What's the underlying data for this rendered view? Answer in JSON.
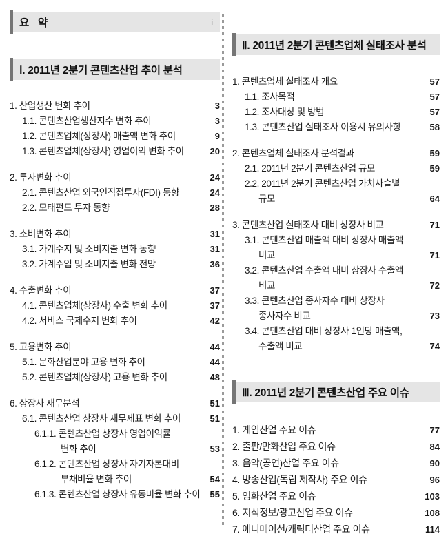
{
  "summary": {
    "label": "요 약",
    "page": "i"
  },
  "sections": {
    "analysis": {
      "title": "Ⅰ. 2011년 2분기 콘텐츠산업 추이 분석",
      "entries": [
        {
          "text": "1. 산업생산 변화 추이",
          "page": "3",
          "level": "0",
          "gap": 0
        },
        {
          "text": "1.1. 콘텐츠산업생산지수 변화 추이",
          "page": "3",
          "level": "1",
          "gap": 0
        },
        {
          "text": "1.2. 콘텐츠업체(상장사) 매출액 변화 추이",
          "page": "9",
          "level": "1",
          "gap": 0
        },
        {
          "text": "1.3. 콘텐츠업체(상장사) 영업이익 변화 추이",
          "page": "20",
          "level": "1",
          "gap": 0
        },
        {
          "text": "2. 투자변화 추이",
          "page": "24",
          "level": "0",
          "gap": 1
        },
        {
          "text": "2.1. 콘텐츠산업 외국인직접투자(FDI) 동향",
          "page": "24",
          "level": "1",
          "gap": 0
        },
        {
          "text": "2.2. 모태펀드 투자 동향",
          "page": "28",
          "level": "1",
          "gap": 0
        },
        {
          "text": "3. 소비변화 추이",
          "page": "31",
          "level": "0",
          "gap": 1
        },
        {
          "text": "3.1. 가계수지 및 소비지출 변화 동향",
          "page": "31",
          "level": "1",
          "gap": 0
        },
        {
          "text": "3.2. 가계수입 및 소비지출 변화 전망",
          "page": "36",
          "level": "1",
          "gap": 0
        },
        {
          "text": "4. 수출변화 추이",
          "page": "37",
          "level": "0",
          "gap": 1
        },
        {
          "text": "4.1. 콘텐츠업체(상장사) 수출 변화 추이",
          "page": "37",
          "level": "1",
          "gap": 0
        },
        {
          "text": "4.2. 서비스 국제수지 변화 추이",
          "page": "42",
          "level": "1",
          "gap": 0
        },
        {
          "text": "5. 고용변화 추이",
          "page": "44",
          "level": "0",
          "gap": 1
        },
        {
          "text": "5.1. 문화산업분야 고용 변화 추이",
          "page": "44",
          "level": "1",
          "gap": 0
        },
        {
          "text": "5.2. 콘텐츠업체(상장사) 고용 변화 추이",
          "page": "48",
          "level": "1",
          "gap": 0
        },
        {
          "text": "6. 상장사 재무분석",
          "page": "51",
          "level": "0",
          "gap": 1
        },
        {
          "text": "6.1. 콘텐츠산업 상장사 재무제표 변화 추이",
          "page": "51",
          "level": "1",
          "gap": 0
        },
        {
          "text": "6.1.1. 콘텐츠산업 상장사 영업이익률",
          "page": "",
          "level": "2",
          "gap": 0
        },
        {
          "text": "변화 추이",
          "page": "53",
          "level": "2c",
          "gap": 0
        },
        {
          "text": "6.1.2. 콘텐츠산업 상장사 자기자본대비",
          "page": "",
          "level": "2",
          "gap": 0
        },
        {
          "text": "부채비율 변화 추이",
          "page": "54",
          "level": "2c",
          "gap": 0
        },
        {
          "text": "6.1.3. 콘텐츠산업 상장사 유동비율 변화 추이",
          "page": "55",
          "level": "2",
          "gap": 0
        }
      ]
    },
    "survey": {
      "title": "Ⅱ. 2011년 2분기 콘텐츠업체 실태조사 분석",
      "entries": [
        {
          "text": "1. 콘텐츠업체 실태조사 개요",
          "page": "57",
          "level": "0",
          "gap": 0
        },
        {
          "text": "1.1. 조사목적",
          "page": "57",
          "level": "1",
          "gap": 0
        },
        {
          "text": "1.2. 조사대상 및 방법",
          "page": "57",
          "level": "1",
          "gap": 0
        },
        {
          "text": "1.3. 콘텐츠산업 실태조사 이용시 유의사항",
          "page": "58",
          "level": "1",
          "gap": 0
        },
        {
          "text": "2. 콘텐츠업체 실태조사 분석결과",
          "page": "59",
          "level": "0",
          "gap": 1
        },
        {
          "text": "2.1. 2011년 2분기 콘텐츠산업 규모",
          "page": "59",
          "level": "1",
          "gap": 0
        },
        {
          "text": "2.2. 2011년 2분기 콘텐츠산업 가치사슬별",
          "page": "",
          "level": "1",
          "gap": 0
        },
        {
          "text": "규모",
          "page": "64",
          "level": "1c",
          "gap": 0
        },
        {
          "text": "3. 콘텐츠산업 실태조사 대비 상장사 비교",
          "page": "71",
          "level": "0",
          "gap": 1
        },
        {
          "text": "3.1. 콘텐츠산업 매출액 대비 상장사 매출액",
          "page": "",
          "level": "1",
          "gap": 0
        },
        {
          "text": "비교",
          "page": "71",
          "level": "1c",
          "gap": 0
        },
        {
          "text": "3.2. 콘텐츠산업 수출액 대비 상장사 수출액",
          "page": "",
          "level": "1",
          "gap": 0
        },
        {
          "text": "비교",
          "page": "72",
          "level": "1c",
          "gap": 0
        },
        {
          "text": "3.3. 콘텐츠산업 종사자수 대비 상장사",
          "page": "",
          "level": "1",
          "gap": 0
        },
        {
          "text": "종사자수 비교",
          "page": "73",
          "level": "1c",
          "gap": 0
        },
        {
          "text": "3.4. 콘텐츠산업 대비 상장사 1인당 매출액,",
          "page": "",
          "level": "1",
          "gap": 0
        },
        {
          "text": "수출액 비교",
          "page": "74",
          "level": "1c",
          "gap": 0
        }
      ]
    },
    "issues": {
      "title": "Ⅲ. 2011년 2분기 콘텐츠산업 주요 이슈",
      "entries": [
        {
          "text": "1. 게임산업 주요 이슈",
          "page": "77",
          "level": "0",
          "gap": 0
        },
        {
          "text": "2. 출판/만화산업 주요 이슈",
          "page": "84",
          "level": "0",
          "gap": 0
        },
        {
          "text": "3. 음악(공연)산업 주요 이슈",
          "page": "90",
          "level": "0",
          "gap": 0
        },
        {
          "text": "4. 방송산업(독립 제작사) 주요 이슈",
          "page": "96",
          "level": "0",
          "gap": 0
        },
        {
          "text": "5. 영화산업 주요 이슈",
          "page": "103",
          "level": "0",
          "gap": 0
        },
        {
          "text": "6. 지식정보/광고산업 주요 이슈",
          "page": "108",
          "level": "0",
          "gap": 0
        },
        {
          "text": "7. 애니메이션/캐릭터산업 주요 이슈",
          "page": "114",
          "level": "0",
          "gap": 0
        }
      ]
    }
  }
}
